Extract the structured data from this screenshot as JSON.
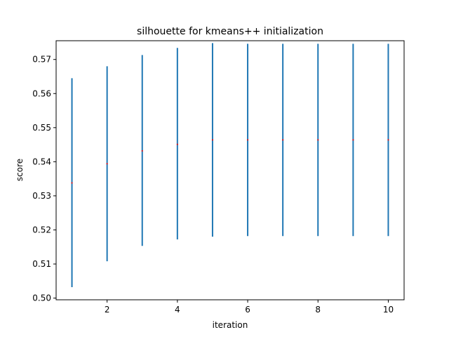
{
  "chart_data": {
    "type": "scatter",
    "title": "silhouette for kmeans++ initialization",
    "xlabel": "iteration",
    "ylabel": "score",
    "xlim": [
      0.55,
      10.45
    ],
    "ylim": [
      0.4995,
      0.5755
    ],
    "xticks": [
      2,
      4,
      6,
      8,
      10
    ],
    "yticks": [
      0.5,
      0.51,
      0.52,
      0.53,
      0.54,
      0.55,
      0.56,
      0.57
    ],
    "ytick_labels": [
      "0.50",
      "0.51",
      "0.52",
      "0.53",
      "0.54",
      "0.55",
      "0.56",
      "0.57"
    ],
    "grid": false,
    "series": [
      {
        "x": [
          1,
          2,
          3,
          4,
          5,
          6,
          7,
          8,
          9,
          10
        ],
        "y": [
          0.5338,
          0.5394,
          0.5432,
          0.5451,
          0.5464,
          0.5464,
          0.5464,
          0.5464,
          0.5464,
          0.5464
        ],
        "yerr_low": [
          0.5032,
          0.5108,
          0.5153,
          0.5172,
          0.518,
          0.5182,
          0.5182,
          0.5182,
          0.5182,
          0.5182
        ],
        "yerr_high": [
          0.5645,
          0.568,
          0.5713,
          0.5734,
          0.5748,
          0.5746,
          0.5746,
          0.5746,
          0.5746,
          0.5746
        ]
      }
    ],
    "colors": {
      "errorbar": "#1f77b4",
      "marker": "#ff0000",
      "axes": "#000000"
    }
  }
}
